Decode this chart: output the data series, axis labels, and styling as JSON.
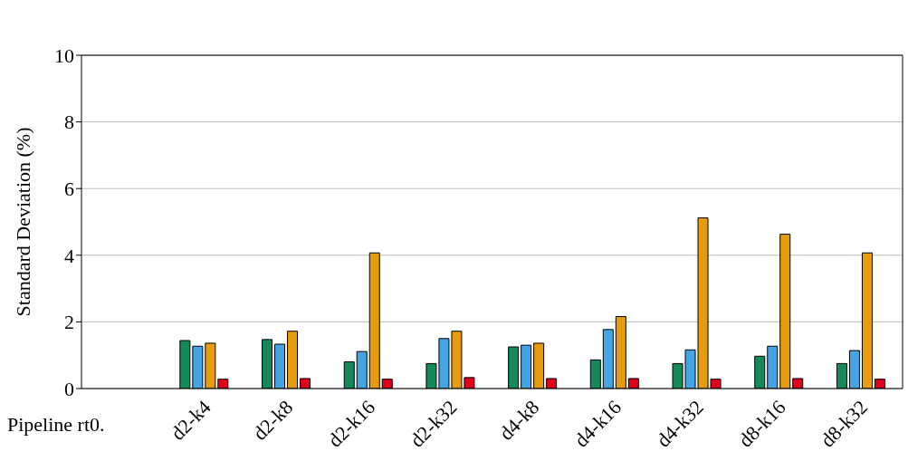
{
  "chart_data": {
    "type": "bar",
    "ylabel": "Standard Deviation (%)",
    "categories": [
      null,
      "d2-k4",
      "d2-k8",
      "d2-k16",
      "d2-k32",
      "d4-k8",
      "d4-k16",
      "d4-k32",
      "d8-k16",
      "d8-k32"
    ],
    "series": [
      {
        "color": "#148a5a",
        "values": [
          null,
          1.44,
          1.47,
          0.8,
          0.75,
          1.25,
          0.86,
          0.75,
          0.97,
          0.75
        ]
      },
      {
        "color": "#44a4e4",
        "values": [
          null,
          1.27,
          1.33,
          1.11,
          1.5,
          1.3,
          1.77,
          1.16,
          1.27,
          1.14
        ]
      },
      {
        "color": "#e69c0c",
        "values": [
          null,
          1.36,
          1.72,
          4.07,
          1.72,
          1.36,
          2.16,
          5.12,
          4.63,
          4.07
        ]
      },
      {
        "color": "#e0001a",
        "values": [
          null,
          0.28,
          0.3,
          0.28,
          0.33,
          0.3,
          0.3,
          0.28,
          0.3,
          0.28
        ]
      }
    ],
    "ylim": [
      0,
      10
    ],
    "yticks": [
      0,
      2,
      4,
      6,
      8,
      10
    ],
    "grid": "y",
    "legend": false,
    "annotations": [
      "Pipeline rt0."
    ]
  }
}
